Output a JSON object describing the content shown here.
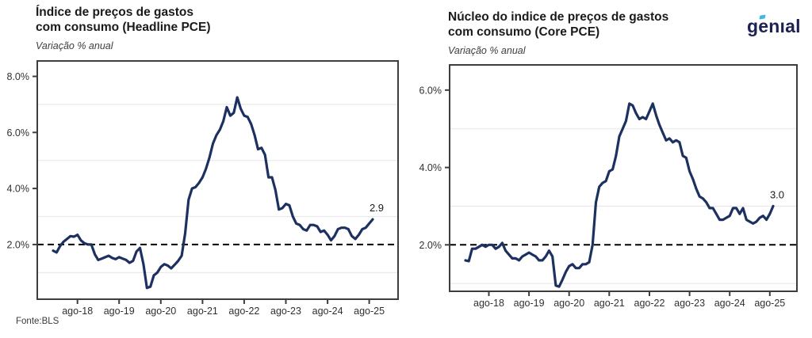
{
  "page": {
    "source_note": "Fonte:BLS"
  },
  "logo": {
    "text": "genıal",
    "color": "#1d2253",
    "accent_color": "#44b5e8"
  },
  "chart_data": [
    {
      "type": "line",
      "title_line1": "Índice de preços de gastos",
      "title_line2": "com consumo (Headline PCE)",
      "subtitle": "Variação % anual",
      "last_value_label": "2.9",
      "ylim": [
        0.05,
        8.55
      ],
      "y_ticks": [
        {
          "value": 8,
          "label": "8.0%"
        },
        {
          "value": 6,
          "label": "6.0%"
        },
        {
          "value": 4,
          "label": "4.0%"
        },
        {
          "value": 2,
          "label": "2.0%"
        }
      ],
      "gridlines_y": [
        7,
        5,
        3,
        1
      ],
      "reference_line": {
        "value": 2.0,
        "style": "dashed",
        "color": "#000000"
      },
      "x_axis": {
        "start": "2018-01",
        "frequency": "monthly",
        "ticks": [
          {
            "month": "2018-08",
            "label": "ago-18"
          },
          {
            "month": "2019-08",
            "label": "ago-19"
          },
          {
            "month": "2020-08",
            "label": "ago-20"
          },
          {
            "month": "2021-08",
            "label": "ago-21"
          },
          {
            "month": "2022-08",
            "label": "ago-22"
          },
          {
            "month": "2023-08",
            "label": "ago-23"
          },
          {
            "month": "2024-08",
            "label": "ago-24"
          },
          {
            "month": "2025-08",
            "label": "ago-25"
          }
        ]
      },
      "series": [
        {
          "name": "Headline PCE YoY %",
          "color": "#1d3160",
          "values": [
            1.78,
            1.72,
            1.95,
            2.1,
            2.2,
            2.3,
            2.28,
            2.35,
            2.15,
            2.05,
            2.0,
            2.0,
            1.65,
            1.45,
            1.5,
            1.55,
            1.6,
            1.52,
            1.48,
            1.55,
            1.5,
            1.45,
            1.35,
            1.42,
            1.75,
            1.88,
            1.3,
            0.45,
            0.5,
            0.9,
            1.0,
            1.2,
            1.3,
            1.25,
            1.15,
            1.28,
            1.42,
            1.6,
            2.4,
            3.6,
            4.0,
            4.05,
            4.2,
            4.4,
            4.7,
            5.1,
            5.6,
            5.9,
            6.1,
            6.4,
            6.9,
            6.6,
            6.7,
            7.25,
            6.85,
            6.6,
            6.55,
            6.3,
            5.9,
            5.4,
            5.45,
            5.2,
            4.4,
            4.4,
            3.95,
            3.25,
            3.3,
            3.45,
            3.4,
            3.0,
            2.75,
            2.7,
            2.55,
            2.5,
            2.7,
            2.7,
            2.65,
            2.45,
            2.5,
            2.35,
            2.15,
            2.3,
            2.55,
            2.6,
            2.6,
            2.55,
            2.3,
            2.2,
            2.35,
            2.55,
            2.6,
            2.75,
            2.9
          ]
        }
      ]
    },
    {
      "type": "line",
      "title_line1": "Núcleo do indice de preços de gastos",
      "title_line2": "com consumo (Core PCE)",
      "subtitle": "Variação % anual",
      "last_value_label": "3.0",
      "ylim": [
        0.8,
        6.65
      ],
      "y_ticks": [
        {
          "value": 6,
          "label": "6.0%"
        },
        {
          "value": 4,
          "label": "4.0%"
        },
        {
          "value": 2,
          "label": "2.0%"
        }
      ],
      "gridlines_y": [
        5,
        3,
        1
      ],
      "reference_line": {
        "value": 2.0,
        "style": "dashed",
        "color": "#000000"
      },
      "x_axis": {
        "start": "2018-01",
        "frequency": "monthly",
        "ticks": [
          {
            "month": "2018-08",
            "label": "ago-18"
          },
          {
            "month": "2019-08",
            "label": "ago-19"
          },
          {
            "month": "2020-08",
            "label": "ago-20"
          },
          {
            "month": "2021-08",
            "label": "ago-21"
          },
          {
            "month": "2022-08",
            "label": "ago-22"
          },
          {
            "month": "2023-08",
            "label": "ago-23"
          },
          {
            "month": "2024-08",
            "label": "ago-24"
          },
          {
            "month": "2025-08",
            "label": "ago-25"
          }
        ]
      },
      "series": [
        {
          "name": "Core PCE YoY %",
          "color": "#1d3160",
          "values": [
            1.6,
            1.58,
            1.9,
            1.9,
            1.95,
            2.0,
            1.95,
            2.0,
            2.0,
            1.9,
            1.95,
            2.05,
            1.85,
            1.75,
            1.65,
            1.65,
            1.6,
            1.7,
            1.75,
            1.8,
            1.75,
            1.7,
            1.6,
            1.6,
            1.7,
            1.85,
            1.7,
            0.95,
            0.92,
            1.1,
            1.3,
            1.45,
            1.5,
            1.4,
            1.4,
            1.5,
            1.5,
            1.55,
            2.0,
            3.1,
            3.5,
            3.6,
            3.65,
            3.9,
            3.95,
            4.3,
            4.8,
            5.0,
            5.2,
            5.65,
            5.6,
            5.4,
            5.25,
            5.3,
            5.25,
            5.45,
            5.65,
            5.35,
            5.1,
            4.9,
            4.7,
            4.75,
            4.65,
            4.7,
            4.65,
            4.3,
            4.25,
            3.9,
            3.7,
            3.45,
            3.25,
            3.2,
            3.1,
            2.95,
            2.95,
            2.8,
            2.65,
            2.65,
            2.7,
            2.75,
            2.95,
            2.95,
            2.8,
            2.95,
            2.65,
            2.6,
            2.55,
            2.6,
            2.7,
            2.75,
            2.65,
            2.8,
            3.0
          ]
        }
      ]
    }
  ]
}
